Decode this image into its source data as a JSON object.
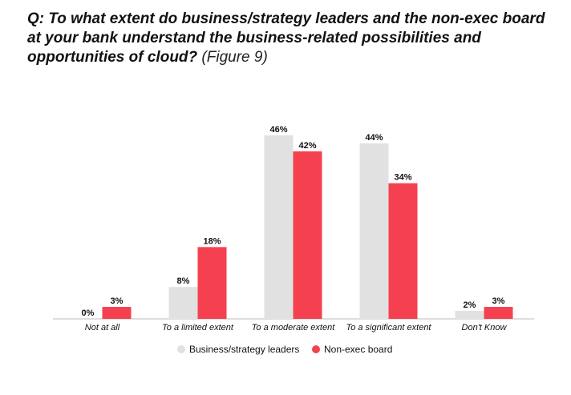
{
  "title": {
    "question": "Q: To what extent do business/strategy leaders and the non-exec board at your bank understand the business-related possibilities and opportunities of cloud?",
    "figure": "(Figure 9)"
  },
  "colors": {
    "series1": "#e1e1e1",
    "series2": "#f5414f",
    "axis": "#bdbdbd"
  },
  "chart_data": {
    "type": "bar",
    "categories": [
      "Not at all",
      "To a limited extent",
      "To a moderate extent",
      "To a significant extent",
      "Don't Know"
    ],
    "series": [
      {
        "name": "Business/strategy leaders",
        "values": [
          0,
          8,
          46,
          44,
          2
        ],
        "labels": [
          "0%",
          "8%",
          "46%",
          "44%",
          "2%"
        ]
      },
      {
        "name": "Non-exec board",
        "values": [
          3,
          18,
          42,
          34,
          3
        ],
        "labels": [
          "3%",
          "18%",
          "42%",
          "34%",
          "3%"
        ]
      }
    ],
    "ylim": [
      0,
      50
    ],
    "grid": false,
    "legend": "bottom"
  }
}
